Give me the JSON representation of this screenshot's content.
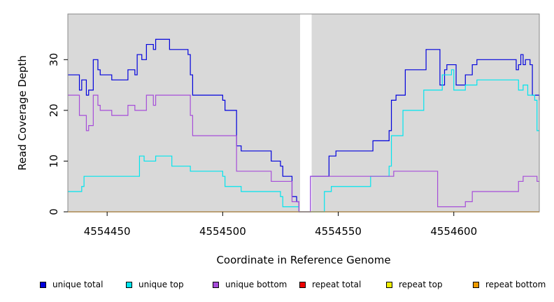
{
  "chart_data": {
    "type": "line",
    "title": "",
    "xlabel": "Coordinate in Reference Genome",
    "ylabel": "Read Coverage Depth",
    "xlim": [
      4554433,
      4554637
    ],
    "ylim": [
      0,
      39
    ],
    "x_ticks": [
      4554450,
      4554500,
      4554550,
      4554600
    ],
    "x_tick_labels": [
      "4554450",
      "4554500",
      "4554550",
      "4554600"
    ],
    "y_ticks": [
      0,
      10,
      20,
      30
    ],
    "y_tick_labels": [
      "0",
      "10",
      "20",
      "30"
    ],
    "grid": false,
    "step": true,
    "shaded_regions": [
      [
        4554433,
        4554533.5
      ],
      [
        4554538.5,
        4554637
      ]
    ],
    "shade_color": "#d9d9d9",
    "legend_position": "bottom",
    "series": [
      {
        "name": "unique total",
        "color": "#0000dd",
        "points": [
          [
            4554433,
            27
          ],
          [
            4554438,
            24
          ],
          [
            4554439,
            26
          ],
          [
            4554441,
            23
          ],
          [
            4554442,
            24
          ],
          [
            4554444,
            30
          ],
          [
            4554446,
            28
          ],
          [
            4554447,
            27
          ],
          [
            4554452,
            26
          ],
          [
            4554459,
            28
          ],
          [
            4554462,
            27
          ],
          [
            4554463,
            31
          ],
          [
            4554465,
            30
          ],
          [
            4554467,
            33
          ],
          [
            4554470,
            32
          ],
          [
            4554471,
            34
          ],
          [
            4554477,
            32
          ],
          [
            4554485,
            31
          ],
          [
            4554486,
            27
          ],
          [
            4554487,
            23
          ],
          [
            4554500,
            22
          ],
          [
            4554501,
            20
          ],
          [
            4554506,
            13
          ],
          [
            4554508,
            12
          ],
          [
            4554521,
            10
          ],
          [
            4554525,
            9
          ],
          [
            4554526,
            7
          ],
          [
            4554530,
            3
          ],
          [
            4554532,
            2
          ],
          [
            4554533,
            0
          ],
          [
            4554538,
            7
          ],
          [
            4554546,
            11
          ],
          [
            4554549,
            12
          ],
          [
            4554565,
            14
          ],
          [
            4554572,
            16
          ],
          [
            4554573,
            22
          ],
          [
            4554575,
            23
          ],
          [
            4554579,
            28
          ],
          [
            4554588,
            32
          ],
          [
            4554594,
            25
          ],
          [
            4554596,
            28
          ],
          [
            4554597,
            29
          ],
          [
            4554601,
            25
          ],
          [
            4554605,
            27
          ],
          [
            4554608,
            29
          ],
          [
            4554610,
            30
          ],
          [
            4554627,
            28
          ],
          [
            4554628,
            29
          ],
          [
            4554629,
            31
          ],
          [
            4554630,
            29
          ],
          [
            4554631,
            30
          ],
          [
            4554633,
            29
          ],
          [
            4554634,
            23
          ],
          [
            4554637,
            22
          ]
        ]
      },
      {
        "name": "unique top",
        "color": "#00e5ee",
        "points": [
          [
            4554433,
            4
          ],
          [
            4554439,
            5
          ],
          [
            4554440,
            7
          ],
          [
            4554464,
            11
          ],
          [
            4554466,
            10
          ],
          [
            4554471,
            11
          ],
          [
            4554478,
            9
          ],
          [
            4554486,
            8
          ],
          [
            4554500,
            7
          ],
          [
            4554501,
            5
          ],
          [
            4554508,
            4
          ],
          [
            4554525,
            3
          ],
          [
            4554526,
            1
          ],
          [
            4554533,
            0
          ],
          [
            4554544,
            4
          ],
          [
            4554547,
            5
          ],
          [
            4554564,
            7
          ],
          [
            4554572,
            9
          ],
          [
            4554573,
            15
          ],
          [
            4554578,
            20
          ],
          [
            4554587,
            24
          ],
          [
            4554595,
            27
          ],
          [
            4554599,
            28
          ],
          [
            4554600,
            24
          ],
          [
            4554605,
            25
          ],
          [
            4554610,
            26
          ],
          [
            4554628,
            24
          ],
          [
            4554630,
            25
          ],
          [
            4554632,
            23
          ],
          [
            4554635,
            22
          ],
          [
            4554636,
            16
          ],
          [
            4554637,
            16
          ]
        ]
      },
      {
        "name": "unique bottom",
        "color": "#a64dd9",
        "points": [
          [
            4554433,
            23
          ],
          [
            4554438,
            19
          ],
          [
            4554441,
            16
          ],
          [
            4554442,
            17
          ],
          [
            4554444,
            23
          ],
          [
            4554446,
            21
          ],
          [
            4554447,
            20
          ],
          [
            4554452,
            19
          ],
          [
            4554459,
            21
          ],
          [
            4554462,
            20
          ],
          [
            4554467,
            23
          ],
          [
            4554470,
            21
          ],
          [
            4554471,
            23
          ],
          [
            4554486,
            19
          ],
          [
            4554487,
            15
          ],
          [
            4554506,
            8
          ],
          [
            4554521,
            6
          ],
          [
            4554530,
            2
          ],
          [
            4554533,
            0
          ],
          [
            4554538,
            7
          ],
          [
            4554570,
            7
          ],
          [
            4554574,
            8
          ],
          [
            4554593,
            1
          ],
          [
            4554605,
            2
          ],
          [
            4554608,
            4
          ],
          [
            4554628,
            6
          ],
          [
            4554630,
            7
          ],
          [
            4554636,
            6
          ],
          [
            4554637,
            6
          ]
        ]
      },
      {
        "name": "repeat total",
        "color": "#ee0000",
        "points": [
          [
            4554433,
            0
          ],
          [
            4554637,
            0
          ]
        ]
      },
      {
        "name": "repeat top",
        "color": "#eeee00",
        "points": [
          [
            4554433,
            0
          ],
          [
            4554637,
            0
          ]
        ]
      },
      {
        "name": "repeat bottom",
        "color": "#ee9a00",
        "points": [
          [
            4554433,
            0
          ],
          [
            4554637,
            0
          ]
        ]
      }
    ]
  }
}
